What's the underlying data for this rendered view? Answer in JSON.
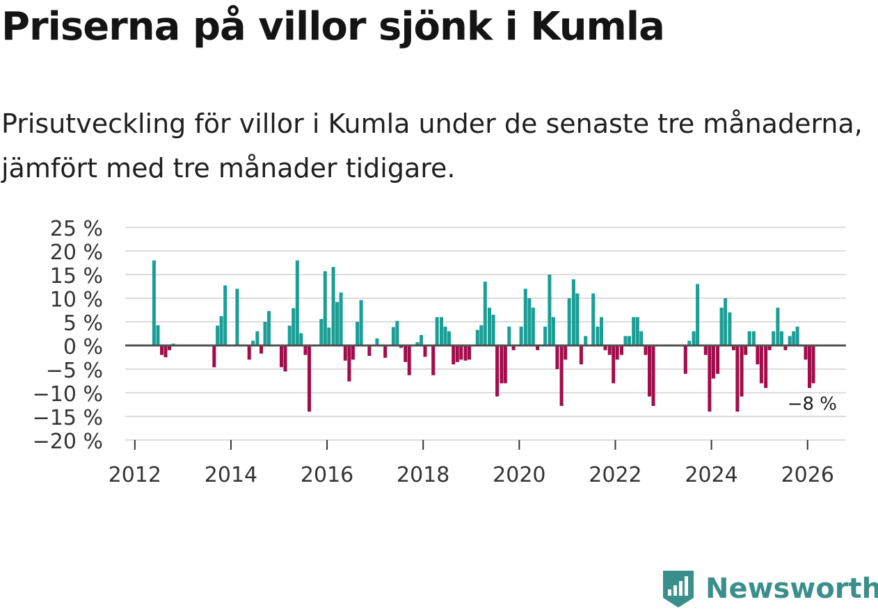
{
  "title": "Priserna på villor sjönk i Kumla",
  "subtitle": "Prisutveckling för villor i Kumla under de senaste tre månaderna, jämfört med tre månader tidigare.",
  "brand": {
    "name": "Newsworthy",
    "icon": "newsworthy-logo-icon"
  },
  "colors": {
    "positive": "#1a9e96",
    "negative": "#a40b4a",
    "grid": "#dcdcdc",
    "zero": "#505050"
  },
  "chart_data": {
    "type": "bar",
    "title": "Priserna på villor sjönk i Kumla",
    "xlabel": "",
    "ylabel": "",
    "ylim": [
      -20,
      25
    ],
    "xlim": [
      2011.8,
      2026.8
    ],
    "y_ticks": [
      {
        "value": 25,
        "label": "25 %"
      },
      {
        "value": 20,
        "label": "20 %"
      },
      {
        "value": 15,
        "label": "15 %"
      },
      {
        "value": 10,
        "label": "10 %"
      },
      {
        "value": 5,
        "label": "5 %"
      },
      {
        "value": 0,
        "label": "0 %"
      },
      {
        "value": -5,
        "label": "−5 %"
      },
      {
        "value": -10,
        "label": "−10 %"
      },
      {
        "value": -15,
        "label": "−15 %"
      },
      {
        "value": -20,
        "label": "−20 %"
      }
    ],
    "x_ticks": [
      {
        "value": 2012,
        "label": "2012"
      },
      {
        "value": 2014,
        "label": "2014"
      },
      {
        "value": 2016,
        "label": "2016"
      },
      {
        "value": 2018,
        "label": "2018"
      },
      {
        "value": 2020,
        "label": "2020"
      },
      {
        "value": 2022,
        "label": "2022"
      },
      {
        "value": 2024,
        "label": "2024"
      },
      {
        "value": 2026,
        "label": "2026"
      }
    ],
    "last_label": "−8 %",
    "series": [
      {
        "name": "Prisutveckling",
        "points": [
          [
            2012.4,
            18
          ],
          [
            2012.48,
            4.3
          ],
          [
            2012.56,
            -2
          ],
          [
            2012.64,
            -2.5
          ],
          [
            2012.72,
            -1
          ],
          [
            2012.8,
            0.4
          ],
          [
            2013.65,
            -4.6
          ],
          [
            2013.72,
            4.2
          ],
          [
            2013.8,
            6.2
          ],
          [
            2013.88,
            12.7
          ],
          [
            2014.13,
            12
          ],
          [
            2014.38,
            -3
          ],
          [
            2014.46,
            1
          ],
          [
            2014.55,
            3
          ],
          [
            2014.63,
            -1.7
          ],
          [
            2014.71,
            5
          ],
          [
            2014.79,
            7.3
          ],
          [
            2015.05,
            -4.6
          ],
          [
            2015.13,
            -5.5
          ],
          [
            2015.22,
            4.2
          ],
          [
            2015.3,
            7.9
          ],
          [
            2015.38,
            18
          ],
          [
            2015.46,
            2.6
          ],
          [
            2015.55,
            -2
          ],
          [
            2015.63,
            -14
          ],
          [
            2015.88,
            5.6
          ],
          [
            2015.96,
            15.7
          ],
          [
            2016.04,
            3.8
          ],
          [
            2016.13,
            16.6
          ],
          [
            2016.21,
            9.2
          ],
          [
            2016.29,
            11.2
          ],
          [
            2016.38,
            -3.2
          ],
          [
            2016.46,
            -7.6
          ],
          [
            2016.54,
            -3
          ],
          [
            2016.63,
            5
          ],
          [
            2016.71,
            9.6
          ],
          [
            2016.88,
            -2.2
          ],
          [
            2017.04,
            1.5
          ],
          [
            2017.21,
            -2.6
          ],
          [
            2017.38,
            3.9
          ],
          [
            2017.46,
            5.2
          ],
          [
            2017.54,
            -0.5
          ],
          [
            2017.63,
            -3.5
          ],
          [
            2017.71,
            -6.3
          ],
          [
            2017.88,
            0.7
          ],
          [
            2017.96,
            2.2
          ],
          [
            2018.04,
            -2.4
          ],
          [
            2018.21,
            -6.3
          ],
          [
            2018.29,
            6
          ],
          [
            2018.38,
            6
          ],
          [
            2018.46,
            4
          ],
          [
            2018.54,
            3
          ],
          [
            2018.63,
            -4
          ],
          [
            2018.71,
            -3.5
          ],
          [
            2018.79,
            -3
          ],
          [
            2018.88,
            -3.2
          ],
          [
            2018.96,
            -3
          ],
          [
            2019.13,
            3.3
          ],
          [
            2019.21,
            4.3
          ],
          [
            2019.29,
            13.5
          ],
          [
            2019.38,
            8
          ],
          [
            2019.46,
            6.5
          ],
          [
            2019.54,
            -10.8
          ],
          [
            2019.63,
            -8
          ],
          [
            2019.71,
            -8
          ],
          [
            2019.79,
            4
          ],
          [
            2019.88,
            -1
          ],
          [
            2020.04,
            4
          ],
          [
            2020.13,
            12
          ],
          [
            2020.21,
            10
          ],
          [
            2020.29,
            8
          ],
          [
            2020.38,
            -1
          ],
          [
            2020.54,
            4
          ],
          [
            2020.63,
            15
          ],
          [
            2020.71,
            6
          ],
          [
            2020.79,
            -5
          ],
          [
            2020.88,
            -12.8
          ],
          [
            2020.96,
            -3
          ],
          [
            2021.04,
            10
          ],
          [
            2021.13,
            14
          ],
          [
            2021.21,
            11
          ],
          [
            2021.29,
            -4
          ],
          [
            2021.38,
            2
          ],
          [
            2021.54,
            11
          ],
          [
            2021.63,
            4
          ],
          [
            2021.71,
            6
          ],
          [
            2021.79,
            -1
          ],
          [
            2021.88,
            -2
          ],
          [
            2021.96,
            -8
          ],
          [
            2022.04,
            -3
          ],
          [
            2022.13,
            -2
          ],
          [
            2022.21,
            2
          ],
          [
            2022.29,
            2
          ],
          [
            2022.38,
            6
          ],
          [
            2022.46,
            6
          ],
          [
            2022.54,
            3
          ],
          [
            2022.63,
            -2
          ],
          [
            2022.71,
            -10.8
          ],
          [
            2022.79,
            -12.8
          ],
          [
            2023.46,
            -6
          ],
          [
            2023.54,
            1
          ],
          [
            2023.63,
            3
          ],
          [
            2023.71,
            13
          ],
          [
            2023.88,
            -2
          ],
          [
            2023.96,
            -14
          ],
          [
            2024.04,
            -7
          ],
          [
            2024.13,
            -6
          ],
          [
            2024.21,
            8
          ],
          [
            2024.29,
            10
          ],
          [
            2024.38,
            7
          ],
          [
            2024.46,
            -1
          ],
          [
            2024.54,
            -14
          ],
          [
            2024.63,
            -10.8
          ],
          [
            2024.71,
            -2
          ],
          [
            2024.79,
            3
          ],
          [
            2024.88,
            3
          ],
          [
            2024.96,
            -4
          ],
          [
            2025.04,
            -8
          ],
          [
            2025.13,
            -9
          ],
          [
            2025.21,
            -1
          ],
          [
            2025.29,
            3
          ],
          [
            2025.38,
            8
          ],
          [
            2025.46,
            3
          ],
          [
            2025.54,
            -1
          ],
          [
            2025.63,
            2
          ],
          [
            2025.71,
            3
          ],
          [
            2025.79,
            4
          ],
          [
            2025.96,
            -3
          ],
          [
            2026.04,
            -9
          ],
          [
            2026.12,
            -8
          ]
        ]
      }
    ]
  }
}
